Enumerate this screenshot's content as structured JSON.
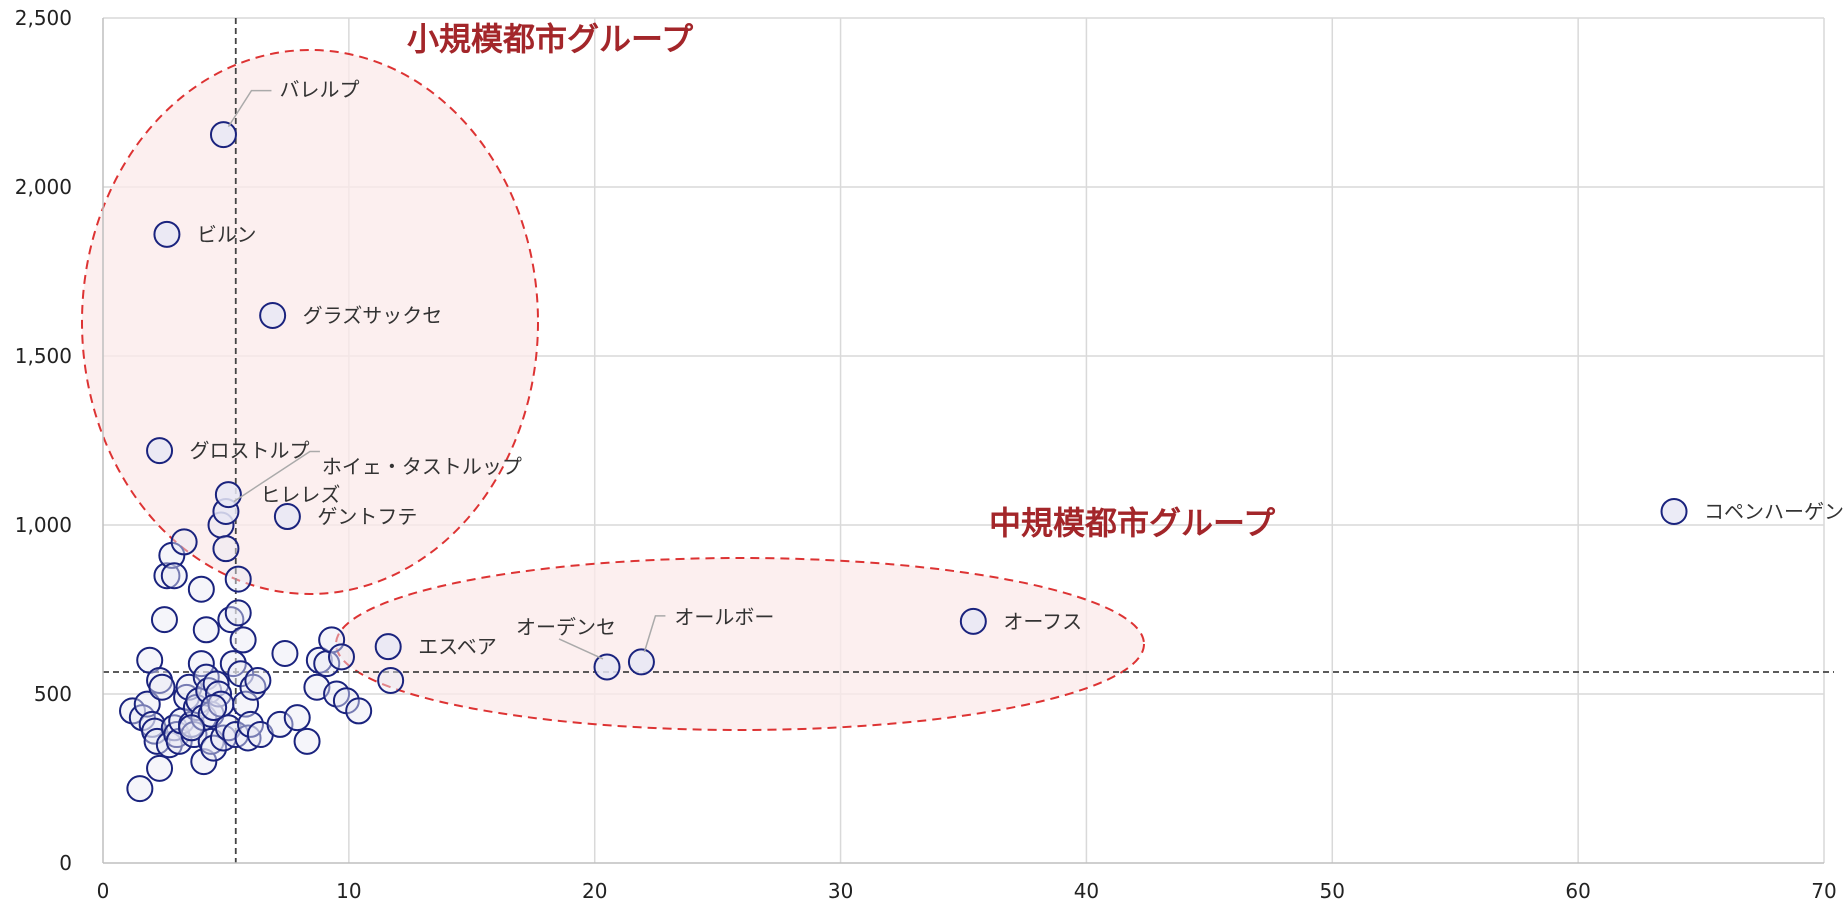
{
  "chart_data": {
    "type": "scatter",
    "title": "",
    "xlabel": "",
    "ylabel": "",
    "xlim": [
      0,
      70
    ],
    "ylim": [
      0,
      2500
    ],
    "x_ticks": [
      "0",
      "10",
      "20",
      "30",
      "40",
      "50",
      "60",
      "70"
    ],
    "y_ticks": [
      "0",
      "500",
      "1,000",
      "1,500",
      "2,000",
      "2,500"
    ],
    "grid": true,
    "reference_lines": {
      "x": 5.4,
      "y": 565
    },
    "colors": {
      "marker_edge": "#1a237e",
      "marker_fill": "#e8e8f4",
      "group": "#a3262a",
      "ellipse": "#dd3333",
      "grid": "#d9d9d9",
      "ref_line": "#444444"
    },
    "groups": [
      {
        "label": "小規模都市グループ"
      },
      {
        "label": "中規模都市グループ"
      }
    ],
    "labeled_points": [
      {
        "name": "バレルプ",
        "x": 4.9,
        "y": 2155
      },
      {
        "name": "ビルン",
        "x": 2.6,
        "y": 1860
      },
      {
        "name": "グラズサックセ",
        "x": 6.9,
        "y": 1620
      },
      {
        "name": "グロストルプ",
        "x": 2.3,
        "y": 1220
      },
      {
        "name": "ホイェ・タストルップ",
        "x": 5.0,
        "y": 1040
      },
      {
        "name": "ヒレレズ",
        "x": 5.1,
        "y": 1090
      },
      {
        "name": "ゲントフテ",
        "x": 7.5,
        "y": 1025
      },
      {
        "name": "エスベア",
        "x": 11.6,
        "y": 640
      },
      {
        "name": "オーデンセ",
        "x": 20.5,
        "y": 580
      },
      {
        "name": "オールボー",
        "x": 21.9,
        "y": 595
      },
      {
        "name": "オーフス",
        "x": 35.4,
        "y": 715
      },
      {
        "name": "コペンハーゲン",
        "x": 63.9,
        "y": 1040
      }
    ],
    "points": [
      [
        1.2,
        450
      ],
      [
        1.5,
        220
      ],
      [
        1.6,
        430
      ],
      [
        1.8,
        470
      ],
      [
        1.9,
        600
      ],
      [
        2.0,
        410
      ],
      [
        2.1,
        390
      ],
      [
        2.2,
        360
      ],
      [
        2.3,
        280
      ],
      [
        2.3,
        540
      ],
      [
        2.4,
        520
      ],
      [
        2.5,
        720
      ],
      [
        2.6,
        850
      ],
      [
        2.7,
        350
      ],
      [
        2.8,
        910
      ],
      [
        2.9,
        400
      ],
      [
        3.0,
        380
      ],
      [
        3.1,
        360
      ],
      [
        3.2,
        420
      ],
      [
        3.3,
        950
      ],
      [
        3.4,
        490
      ],
      [
        3.5,
        520
      ],
      [
        3.6,
        410
      ],
      [
        3.7,
        380
      ],
      [
        3.8,
        460
      ],
      [
        3.9,
        480
      ],
      [
        4.0,
        590
      ],
      [
        4.0,
        810
      ],
      [
        4.1,
        430
      ],
      [
        4.1,
        300
      ],
      [
        4.2,
        690
      ],
      [
        4.2,
        550
      ],
      [
        4.3,
        510
      ],
      [
        4.4,
        440
      ],
      [
        4.4,
        360
      ],
      [
        4.5,
        340
      ],
      [
        4.6,
        530
      ],
      [
        4.7,
        500
      ],
      [
        4.8,
        470
      ],
      [
        4.8,
        1000
      ],
      [
        4.9,
        370
      ],
      [
        5.0,
        930
      ],
      [
        5.1,
        400
      ],
      [
        5.2,
        720
      ],
      [
        5.3,
        590
      ],
      [
        5.4,
        380
      ],
      [
        5.5,
        840
      ],
      [
        5.5,
        740
      ],
      [
        5.6,
        560
      ],
      [
        5.7,
        660
      ],
      [
        5.8,
        470
      ],
      [
        5.9,
        370
      ],
      [
        6.0,
        410
      ],
      [
        6.1,
        520
      ],
      [
        6.3,
        540
      ],
      [
        6.4,
        380
      ],
      [
        7.2,
        410
      ],
      [
        7.4,
        620
      ],
      [
        7.9,
        430
      ],
      [
        8.3,
        360
      ],
      [
        8.7,
        520
      ],
      [
        8.8,
        600
      ],
      [
        9.1,
        590
      ],
      [
        9.3,
        660
      ],
      [
        9.5,
        500
      ],
      [
        9.7,
        610
      ],
      [
        9.9,
        480
      ],
      [
        10.4,
        450
      ],
      [
        11.7,
        540
      ],
      [
        2.9,
        850
      ],
      [
        3.6,
        400
      ],
      [
        4.5,
        460
      ]
    ]
  }
}
